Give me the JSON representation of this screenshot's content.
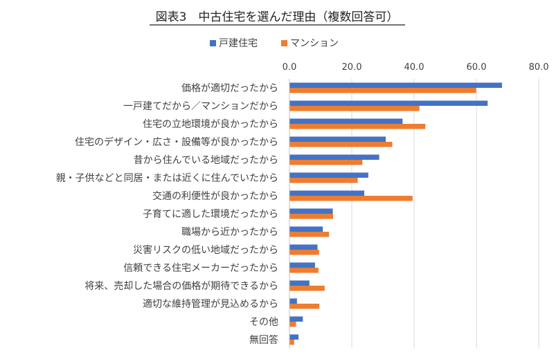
{
  "chart_data": {
    "type": "bar",
    "orientation": "horizontal",
    "title": "図表3　中古住宅を選んだ理由（複数回答可）",
    "xlabel": "",
    "ylabel": "",
    "xlim": [
      0,
      80
    ],
    "ticks": [
      "0.0",
      "20.0",
      "40.0",
      "60.0",
      "80.0"
    ],
    "tick_values": [
      0,
      20,
      40,
      60,
      80
    ],
    "grid": true,
    "legend_position": "top",
    "categories": [
      "価格が適切だったから",
      "一戸建てだから／マンションだから",
      "住宅の立地環境が良かったから",
      "住宅のデザイン・広さ・設備等が良かったから",
      "昔から住んでいる地域だったから",
      "親・子供などと同居・または近くに住んでいたから",
      "交通の利便性が良かったから",
      "子育てに適した環境だったから",
      "職場から近かったから",
      "災害リスクの低い地域だったから",
      "信頼できる住宅メーカーだったから",
      "将来、売却した場合の価格が期待できるから",
      "適切な維持管理が見込めるから",
      "その他",
      "無回答"
    ],
    "series": [
      {
        "name": "戸建住宅",
        "color": "#4472C4",
        "values": [
          68.2,
          63.6,
          36.3,
          30.9,
          28.8,
          25.3,
          24.0,
          13.9,
          10.7,
          9.0,
          8.2,
          6.4,
          2.4,
          4.3,
          2.9
        ]
      },
      {
        "name": "マンション",
        "color": "#ED7D31",
        "values": [
          59.9,
          41.7,
          43.6,
          33.0,
          23.4,
          21.9,
          39.5,
          14.0,
          12.7,
          9.5,
          9.3,
          11.3,
          9.6,
          2.1,
          1.5
        ]
      }
    ]
  }
}
